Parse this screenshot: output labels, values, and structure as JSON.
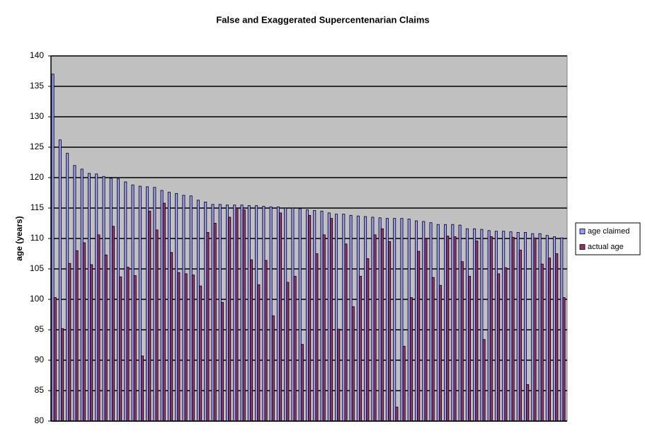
{
  "chart_data": {
    "type": "bar",
    "title": "False and Exaggerated Supercentenarian Claims",
    "y_label": "age (years)",
    "categories": [
      null,
      null,
      null,
      null,
      null,
      null,
      null,
      null,
      null,
      null,
      null,
      null,
      null,
      null,
      null,
      null,
      null,
      null,
      null,
      null,
      null,
      null,
      null,
      null,
      null,
      null,
      null,
      null,
      null,
      null,
      null,
      null,
      null,
      null,
      null,
      null,
      null,
      null,
      null,
      null,
      null,
      null,
      null,
      null,
      null,
      null,
      null,
      null,
      null,
      null,
      null,
      null,
      null,
      null,
      null,
      null,
      null,
      null,
      null,
      null,
      null,
      null,
      null,
      null,
      null,
      null,
      null,
      null,
      null,
      null,
      null
    ],
    "series": [
      {
        "name": "age claimed",
        "color": "#9999ff",
        "values": [
          137,
          126.2,
          124,
          122,
          121.4,
          120.7,
          120.6,
          120.2,
          119.9,
          119.8,
          119.3,
          118.8,
          118.6,
          118.5,
          118.4,
          117.9,
          117.6,
          117.4,
          117.1,
          117,
          116.3,
          116,
          115.6,
          115.6,
          115.5,
          115.5,
          115.5,
          115.4,
          115.4,
          115.3,
          115.2,
          115.2,
          115,
          115,
          114.9,
          114.7,
          114.6,
          114.5,
          114.2,
          114,
          114,
          113.8,
          113.7,
          113.6,
          113.5,
          113.4,
          113.3,
          113.3,
          113.3,
          113.2,
          112.9,
          112.8,
          112.6,
          112.3,
          112.3,
          112.3,
          112.2,
          111.6,
          111.6,
          111.5,
          111.3,
          111.2,
          111.2,
          111.1,
          111,
          111,
          110.8,
          110.8,
          110.5,
          110.3,
          110.1
        ]
      },
      {
        "name": "actual age",
        "color": "#993366",
        "values": [
          100.3,
          95.2,
          105.9,
          108,
          109.3,
          105.7,
          110.6,
          107.3,
          112,
          103.7,
          105.3,
          103.9,
          90.7,
          114.5,
          111.4,
          115.8,
          107.7,
          104.4,
          104.2,
          104,
          102.2,
          111,
          112.5,
          99.5,
          113.5,
          115,
          114.7,
          106.5,
          102.4,
          106.4,
          97.3,
          114.2,
          102.8,
          103.8,
          92.6,
          113.8,
          107.5,
          110.6,
          113.3,
          95.1,
          109.1,
          98.8,
          103.8,
          106.7,
          110.6,
          111.6,
          109.5,
          82.3,
          92.3,
          100.3,
          107.9,
          110,
          103.6,
          102.3,
          110.4,
          110.3,
          106.2,
          103.8,
          109.6,
          93.4,
          110.3,
          104.2,
          105.2,
          110.2,
          108.1,
          86,
          110.1,
          105.8,
          106.8,
          107.5,
          100.3
        ]
      }
    ],
    "ylim": [
      80,
      140
    ],
    "yticks": [
      80,
      85,
      90,
      95,
      100,
      105,
      110,
      115,
      120,
      125,
      130,
      135,
      140
    ],
    "grid": true,
    "legend": "right"
  }
}
